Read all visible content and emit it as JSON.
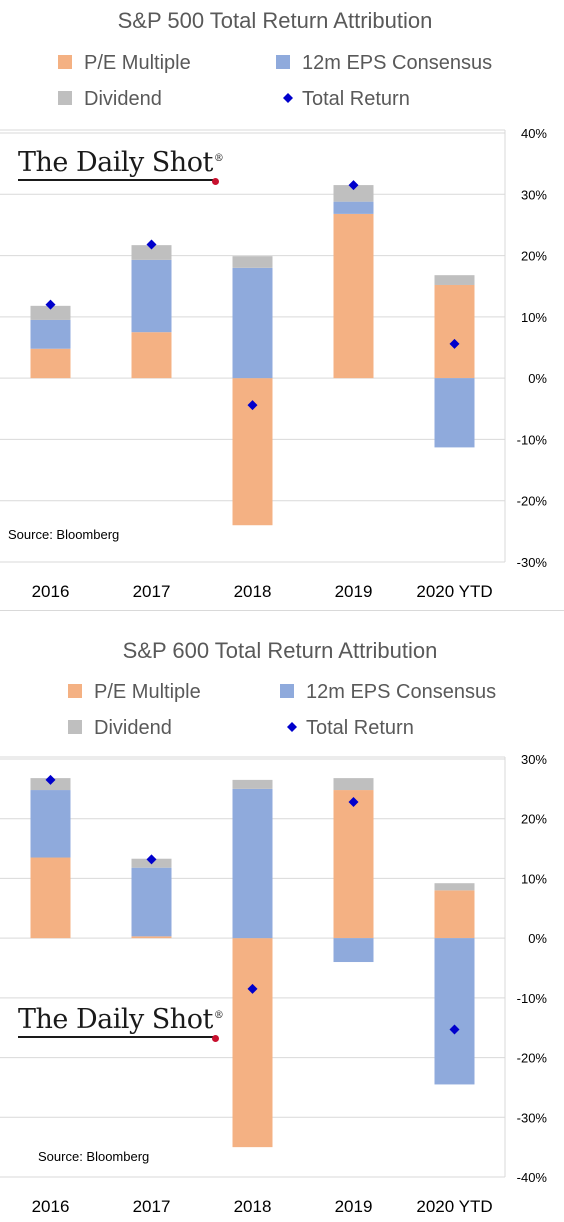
{
  "chart_data": [
    {
      "type": "bar",
      "stacked": true,
      "title": "S&P 500 Total Return Attribution",
      "categories": [
        "2016",
        "2017",
        "2018",
        "2019",
        "2020 YTD"
      ],
      "series": [
        {
          "name": "P/E Multiple",
          "type": "bar",
          "color": "#f4b183",
          "values": [
            4.8,
            7.5,
            -24.0,
            26.8,
            15.2
          ]
        },
        {
          "name": "12m EPS Consensus",
          "type": "bar",
          "color": "#8faadc",
          "values": [
            4.7,
            11.8,
            18.0,
            2.0,
            -11.3
          ]
        },
        {
          "name": "Dividend",
          "type": "bar",
          "color": "#bfbfbf",
          "values": [
            2.3,
            2.4,
            1.9,
            2.7,
            1.6
          ]
        },
        {
          "name": "Total Return",
          "type": "scatter",
          "marker": "diamond",
          "color": "#0000cc",
          "values": [
            12.0,
            21.8,
            -4.4,
            31.5,
            5.6
          ]
        }
      ],
      "ylim": [
        -30,
        40
      ],
      "yticks": [
        -30,
        -20,
        -10,
        0,
        10,
        20,
        30,
        40
      ],
      "ytick_labels": [
        "-30%",
        "-20%",
        "-10%",
        "0%",
        "10%",
        "20%",
        "30%",
        "40%"
      ],
      "grid": true,
      "legend_position": "top",
      "source": "Source: Bloomberg",
      "logo": {
        "text": "The Daily Shot",
        "mark": "®"
      }
    },
    {
      "type": "bar",
      "stacked": true,
      "title": "S&P 600 Total Return Attribution",
      "categories": [
        "2016",
        "2017",
        "2018",
        "2019",
        "2020 YTD"
      ],
      "series": [
        {
          "name": "P/E Multiple",
          "type": "bar",
          "color": "#f4b183",
          "values": [
            13.5,
            0.3,
            -35.0,
            24.8,
            8.0
          ]
        },
        {
          "name": "12m EPS Consensus",
          "type": "bar",
          "color": "#8faadc",
          "values": [
            11.3,
            11.5,
            25.0,
            -4.0,
            -24.5
          ]
        },
        {
          "name": "Dividend",
          "type": "bar",
          "color": "#bfbfbf",
          "values": [
            2.0,
            1.5,
            1.5,
            2.0,
            1.2
          ]
        },
        {
          "name": "Total Return",
          "type": "scatter",
          "marker": "diamond",
          "color": "#0000cc",
          "values": [
            26.5,
            13.2,
            -8.5,
            22.8,
            -15.3
          ]
        }
      ],
      "ylim": [
        -40,
        30
      ],
      "yticks": [
        -40,
        -30,
        -20,
        -10,
        0,
        10,
        20,
        30
      ],
      "ytick_labels": [
        "-40%",
        "-30%",
        "-20%",
        "-10%",
        "0%",
        "10%",
        "20%",
        "30%"
      ],
      "grid": true,
      "legend_position": "top",
      "source": "Source: Bloomberg",
      "logo": {
        "text": "The Daily Shot",
        "mark": "®"
      }
    }
  ]
}
